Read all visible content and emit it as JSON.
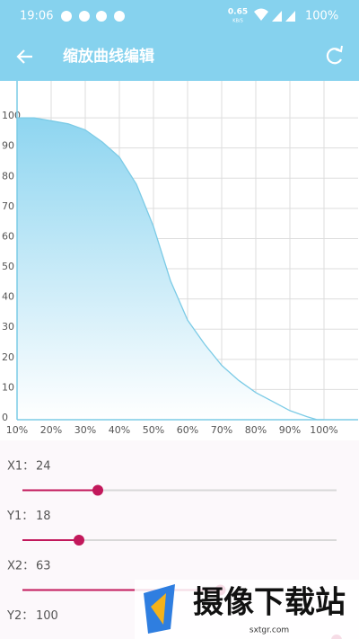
{
  "status_bar": {
    "time": "19:06",
    "speed": "0.65",
    "speed_unit": "KB/S",
    "battery": "100%"
  },
  "app_bar": {
    "title": "缩放曲线编辑"
  },
  "chart_data": {
    "type": "area",
    "x": [
      10,
      12,
      15,
      20,
      25,
      30,
      35,
      40,
      45,
      50,
      55,
      60,
      65,
      70,
      75,
      80,
      85,
      90,
      95,
      98,
      100
    ],
    "values": [
      100,
      100,
      100,
      99,
      98,
      96,
      92,
      87,
      78,
      64,
      46,
      33,
      25,
      18,
      13,
      9,
      6,
      3,
      1,
      0,
      0
    ],
    "color": "#7ccbe6",
    "xlim": [
      10,
      110
    ],
    "ylim": [
      0,
      110
    ],
    "xticks": [
      {
        "value": 10,
        "label": "10%"
      },
      {
        "value": 20,
        "label": "20%"
      },
      {
        "value": 30,
        "label": "30%"
      },
      {
        "value": 40,
        "label": "40%"
      },
      {
        "value": 50,
        "label": "50%"
      },
      {
        "value": 60,
        "label": "60%"
      },
      {
        "value": 70,
        "label": "70%"
      },
      {
        "value": 80,
        "label": "80%"
      },
      {
        "value": 90,
        "label": "90%"
      },
      {
        "value": 100,
        "label": "100%"
      }
    ],
    "yticks": [
      0,
      10,
      20,
      30,
      40,
      50,
      60,
      70,
      80,
      90,
      100
    ],
    "grid": true
  },
  "sliders": [
    {
      "label": "X1：",
      "value": 24
    },
    {
      "label": "Y1：",
      "value": 18
    },
    {
      "label": "X2：",
      "value": 63
    },
    {
      "label": "Y2：",
      "value": 100
    }
  ],
  "watermark": {
    "title": "摄像下载站",
    "url": "sxtgr.com"
  }
}
